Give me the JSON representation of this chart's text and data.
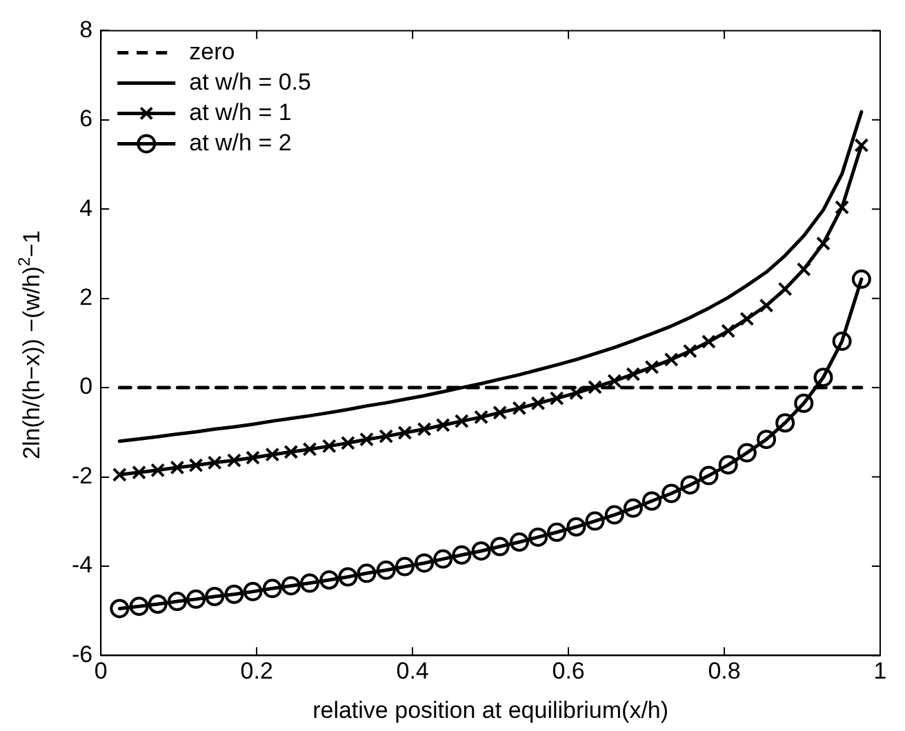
{
  "chart_data": {
    "type": "line",
    "xlabel": "relative position at equilibrium(x/h)",
    "ylabel": "2ln(h/(h−x)) −(w/h)$^{2}$−1",
    "x": [
      0.024,
      0.049,
      0.073,
      0.098,
      0.122,
      0.146,
      0.171,
      0.195,
      0.22,
      0.244,
      0.268,
      0.293,
      0.317,
      0.341,
      0.366,
      0.39,
      0.415,
      0.439,
      0.463,
      0.488,
      0.512,
      0.537,
      0.561,
      0.585,
      0.61,
      0.634,
      0.659,
      0.683,
      0.707,
      0.732,
      0.756,
      0.78,
      0.805,
      0.829,
      0.854,
      0.878,
      0.902,
      0.927,
      0.951,
      0.976
    ],
    "series": [
      {
        "name": "zero",
        "color": "#000000",
        "x": [
          0.024,
          0.976
        ],
        "values": [
          0,
          0
        ],
        "line_style": "dashed",
        "marker": "none"
      },
      {
        "name": "at w/h = 0.5",
        "color": "#000000",
        "line_style": "solid",
        "marker": "none",
        "values": [
          -1.2,
          -1.15,
          -1.1,
          -1.04,
          -0.99,
          -0.93,
          -0.88,
          -0.82,
          -0.75,
          -0.69,
          -0.63,
          -0.56,
          -0.49,
          -0.41,
          -0.34,
          -0.26,
          -0.18,
          -0.09,
          0.0,
          0.09,
          0.19,
          0.29,
          0.4,
          0.51,
          0.63,
          0.76,
          0.9,
          1.05,
          1.21,
          1.38,
          1.57,
          1.78,
          2.02,
          2.29,
          2.59,
          2.96,
          3.4,
          3.98,
          4.79,
          6.18
        ]
      },
      {
        "name": "at w/h = 1",
        "color": "#000000",
        "line_style": "solid",
        "marker": "cross",
        "values": [
          -1.95,
          -1.9,
          -1.85,
          -1.79,
          -1.74,
          -1.68,
          -1.63,
          -1.57,
          -1.5,
          -1.44,
          -1.38,
          -1.31,
          -1.24,
          -1.16,
          -1.09,
          -1.01,
          -0.93,
          -0.84,
          -0.75,
          -0.66,
          -0.56,
          -0.46,
          -0.35,
          -0.24,
          -0.12,
          0.01,
          0.15,
          0.3,
          0.46,
          0.63,
          0.82,
          1.03,
          1.27,
          1.54,
          1.84,
          2.21,
          2.65,
          3.23,
          4.04,
          5.43
        ]
      },
      {
        "name": "at w/h = 2",
        "color": "#000000",
        "line_style": "solid",
        "marker": "circle",
        "values": [
          -4.95,
          -4.9,
          -4.85,
          -4.79,
          -4.74,
          -4.68,
          -4.63,
          -4.57,
          -4.5,
          -4.44,
          -4.38,
          -4.31,
          -4.24,
          -4.16,
          -4.09,
          -4.01,
          -3.93,
          -3.84,
          -3.75,
          -3.66,
          -3.56,
          -3.46,
          -3.35,
          -3.24,
          -3.12,
          -2.99,
          -2.85,
          -2.7,
          -2.54,
          -2.37,
          -2.18,
          -1.97,
          -1.73,
          -1.46,
          -1.16,
          -0.79,
          -0.35,
          0.23,
          1.04,
          2.43
        ]
      }
    ],
    "xlim": [
      0,
      1
    ],
    "xticks": [
      0,
      0.2,
      0.4,
      0.6,
      0.8,
      1
    ],
    "ylim": [
      -6,
      8
    ],
    "yticks": [
      -6,
      -4,
      -2,
      0,
      2,
      4,
      6,
      8
    ],
    "grid": false,
    "legend": "top left"
  }
}
